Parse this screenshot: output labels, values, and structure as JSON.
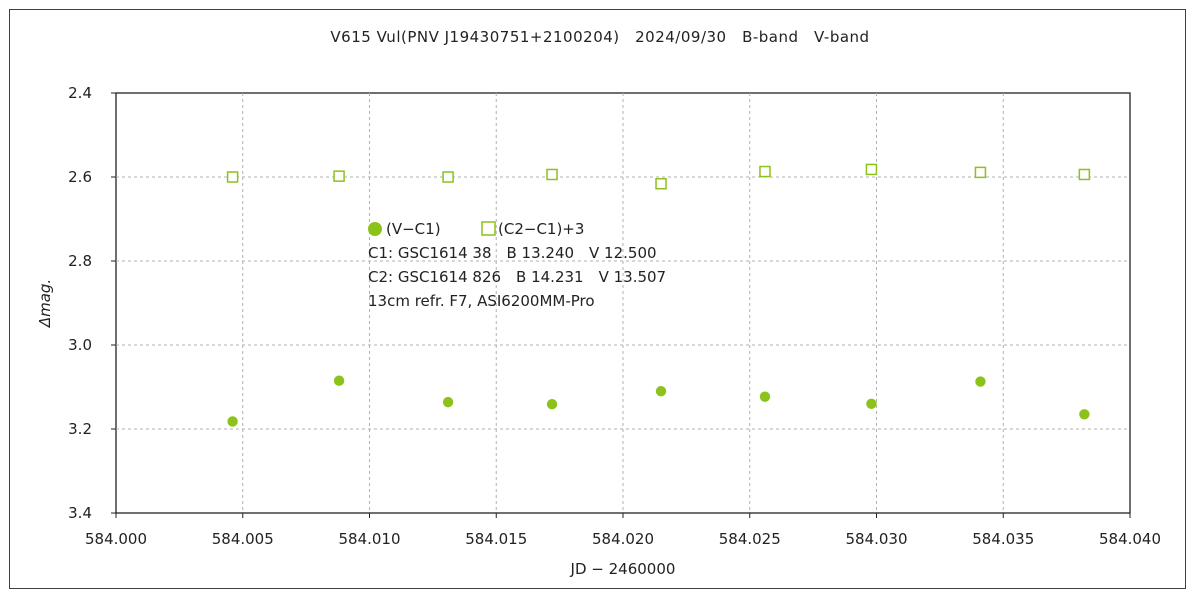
{
  "chart_data": {
    "type": "scatter",
    "title": "V615 Vul(PNV J19430751+2100204)　2024/09/30　B-band　V-band",
    "xlabel": "JD − 2460000",
    "ylabel": "Δmag.",
    "xlim": [
      584.0,
      584.04
    ],
    "ylim": [
      2.4,
      3.4
    ],
    "y_inverted": true,
    "grid": true,
    "x_ticks": [
      "584.000",
      "584.005",
      "584.010",
      "584.015",
      "584.020",
      "584.025",
      "584.030",
      "584.035",
      "584.040"
    ],
    "y_ticks": [
      "2.4",
      "2.6",
      "2.8",
      "3.0",
      "3.2",
      "3.4"
    ],
    "series": [
      {
        "name": "(V−C1)",
        "marker": "filled-circle",
        "color": "#8cc21a",
        "x": [
          584.0046,
          584.0088,
          584.0131,
          584.0172,
          584.0215,
          584.0256,
          584.0298,
          584.0341,
          584.0382
        ],
        "y": [
          3.182,
          3.085,
          3.136,
          3.141,
          3.11,
          3.123,
          3.14,
          3.087,
          3.165
        ]
      },
      {
        "name": "(C2−C1)+3",
        "marker": "open-square",
        "color": "#8cc21a",
        "x": [
          584.0046,
          584.0088,
          584.0131,
          584.0172,
          584.0215,
          584.0256,
          584.0298,
          584.0341,
          584.0382
        ],
        "y": [
          2.6,
          2.598,
          2.6,
          2.594,
          2.616,
          2.587,
          2.582,
          2.589,
          2.594
        ]
      }
    ],
    "legend_position": "upper-left-center",
    "annotations": [
      "C1: GSC1614 38　B 13.240　V 12.500",
      "C2: GSC1614 826　B 14.231　V 13.507",
      "13cm refr. F7,  ASI6200MM-Pro"
    ]
  }
}
